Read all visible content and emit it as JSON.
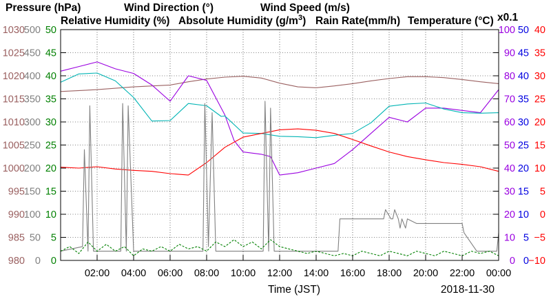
{
  "chart_data": {
    "type": "line",
    "date": "2018-11-30",
    "xlabel": "Time (JST)",
    "x_ticks": [
      "02:00",
      "04:00",
      "06:00",
      "08:00",
      "10:00",
      "12:00",
      "14:00",
      "16:00",
      "18:00",
      "20:00",
      "22:00",
      "00:00"
    ],
    "x_range_hours": [
      0,
      24
    ],
    "grid": true,
    "colors": {
      "pressure": "#9a6060",
      "wind_direction": "#808080",
      "wind_speed": "#008000",
      "relative_humidity": "#9a00e0",
      "absolute_humidity": "#00b4b4",
      "rain_rate": "#0000e0",
      "temperature": "#ff0000"
    },
    "legend": {
      "pressure": "Pressure (hPa)",
      "wind_direction": "Wind Direction (°)",
      "wind_speed": "Wind Speed (m/s)",
      "relative_humidity": "Relative Humidity (%)",
      "absolute_humidity_prefix": "Absolute Humidity (g/m",
      "absolute_humidity_sup": "3",
      "absolute_humidity_suffix": ")",
      "rain_rate": "Rain Rate(mm/h)",
      "temperature": "Temperature (°C)",
      "rain_scale_note": "x0.1"
    },
    "axes": {
      "pressure": {
        "range": [
          980,
          1030
        ],
        "ticks": [
          "1030",
          "1025",
          "1020",
          "1015",
          "1010",
          "1005",
          "1000",
          "995",
          "990",
          "985",
          "980"
        ]
      },
      "wind_direction": {
        "range": [
          0,
          500
        ],
        "ticks": [
          "500",
          "450",
          "400",
          "350",
          "300",
          "250",
          "200",
          "150",
          "100",
          "50",
          "0"
        ]
      },
      "wind_speed": {
        "range": [
          0,
          50
        ],
        "ticks": [
          "50",
          "45",
          "40",
          "35",
          "30",
          "25",
          "20",
          "15",
          "10",
          "5",
          "0"
        ]
      },
      "relative_humidity": {
        "range": [
          0,
          100
        ],
        "ticks": [
          "100",
          "90",
          "80",
          "70",
          "60",
          "50",
          "40",
          "30",
          "20",
          "10",
          "0"
        ]
      },
      "rain_rate": {
        "range": [
          0,
          50
        ],
        "ticks": [
          "50",
          "45",
          "40",
          "35",
          "30",
          "25",
          "20",
          "15",
          "10",
          "5",
          "0"
        ]
      },
      "temperature": {
        "range": [
          -10,
          40
        ],
        "ticks": [
          "40",
          "35",
          "30",
          "25",
          "20",
          "15",
          "10",
          "5",
          "0",
          "−5",
          "−10"
        ]
      }
    },
    "series": [
      {
        "name": "Pressure (hPa)",
        "axis": "pressure",
        "style": "solid",
        "x": [
          0,
          2,
          4,
          6,
          7,
          8,
          9,
          10,
          11,
          12,
          13,
          14,
          15,
          16,
          17,
          18,
          19,
          20,
          21,
          22,
          23,
          24
        ],
        "y": [
          1016.6,
          1017,
          1017.6,
          1018,
          1018.7,
          1019.3,
          1019.7,
          1019.9,
          1019.5,
          1018.4,
          1017.6,
          1017.4,
          1017.8,
          1018.3,
          1018.9,
          1019.4,
          1019.8,
          1019.8,
          1019.6,
          1019.2,
          1018.7,
          1018.3
        ]
      },
      {
        "name": "Relative Humidity (%)",
        "axis": "relative_humidity",
        "style": "solid",
        "x": [
          0,
          1,
          2,
          3,
          4,
          5,
          6,
          7,
          8,
          9,
          9.5,
          10,
          11,
          11.5,
          12,
          13,
          14,
          15,
          16,
          17,
          18,
          19,
          20,
          21,
          22,
          23,
          24
        ],
        "y": [
          82,
          84,
          86,
          83,
          81,
          76,
          69,
          80,
          78,
          63,
          52,
          47,
          46,
          45,
          37,
          38,
          40,
          42,
          48,
          55,
          62,
          60,
          66,
          66,
          65,
          64,
          74
        ]
      },
      {
        "name": "Absolute Humidity (g/m3)",
        "axis": "wind_speed",
        "style": "solid",
        "x": [
          0,
          1,
          2,
          3,
          4,
          5,
          6,
          7,
          8,
          8.8,
          9,
          10,
          11,
          12,
          13,
          14,
          15,
          16,
          17,
          18,
          19,
          20,
          21,
          22,
          23,
          24
        ],
        "y": [
          38.6,
          40.4,
          40.6,
          38.9,
          35.3,
          30.2,
          30.3,
          34,
          33.5,
          31.2,
          31.3,
          27.6,
          27.5,
          26.9,
          26.8,
          26.6,
          27.1,
          27.5,
          29.8,
          33.4,
          33.9,
          34.1,
          32.8,
          32,
          31.9,
          32
        ]
      },
      {
        "name": "Temperature (°C)",
        "axis": "temperature",
        "style": "solid",
        "x": [
          0,
          1,
          2,
          3,
          4,
          5,
          6,
          7,
          8,
          9,
          10,
          11,
          12,
          13,
          14,
          15,
          16,
          17,
          18,
          19,
          20,
          21,
          22,
          23,
          24
        ],
        "y": [
          10.2,
          10,
          10.3,
          9.8,
          9.5,
          9.3,
          8.8,
          8.5,
          11.2,
          14.5,
          16.7,
          17.5,
          18.3,
          18.5,
          18.2,
          17.5,
          16.2,
          14.8,
          13.5,
          12.5,
          11.8,
          11.2,
          10.8,
          10.3,
          9.3
        ]
      },
      {
        "name": "Wind Direction (°)",
        "axis": "wind_direction",
        "style": "solid",
        "x": [
          0,
          1.2,
          1.3,
          1.5,
          1.6,
          1.8,
          2.5,
          3.3,
          3.4,
          3.6,
          3.7,
          4,
          6,
          7.8,
          7.9,
          8.1,
          8.3,
          8.5,
          10,
          11.1,
          11.2,
          11.4,
          11.5,
          11.7,
          15,
          15.2,
          15.3,
          17.7,
          17.8,
          18.1,
          18.2,
          18.3,
          18.5,
          18.6,
          18.7,
          18.9,
          19,
          19.5,
          22,
          22.1,
          22.8,
          23.9,
          24
        ],
        "y": [
          20,
          30,
          240,
          20,
          335,
          20,
          20,
          20,
          340,
          20,
          335,
          20,
          20,
          20,
          340,
          30,
          320,
          20,
          20,
          20,
          345,
          20,
          330,
          20,
          20,
          20,
          90,
          90,
          110,
          90,
          90,
          110,
          90,
          70,
          90,
          70,
          90,
          80,
          80,
          60,
          20,
          20,
          60
        ]
      },
      {
        "name": "Wind Speed (m/s)",
        "axis": "wind_speed",
        "style": "dashed",
        "x": [
          0,
          0.5,
          1,
          1.5,
          2,
          2.5,
          3,
          3.5,
          4,
          4.5,
          5,
          5.5,
          6,
          6.5,
          7,
          7.5,
          8,
          8.5,
          9,
          9.5,
          10,
          10.5,
          11,
          11.5,
          12,
          12.5,
          13,
          13.5,
          14,
          14.5,
          15,
          15.5,
          16,
          16.5,
          17,
          17.5,
          18,
          18.5,
          19,
          19.5,
          20,
          20.5,
          21,
          21.5,
          22,
          22.5,
          23,
          23.5,
          24
        ],
        "y": [
          2,
          3,
          1.5,
          4,
          2,
          3.5,
          2,
          3,
          1,
          2.5,
          2,
          3,
          2,
          3.5,
          2.5,
          3,
          2,
          4,
          3,
          4.5,
          3,
          4,
          2.5,
          4.5,
          3,
          2.5,
          2,
          1.5,
          2,
          1.5,
          1,
          1.5,
          1,
          2,
          1.5,
          1,
          2,
          1.5,
          1,
          2,
          1.5,
          1,
          2,
          1.5,
          1,
          2,
          1.5,
          2,
          1
        ]
      },
      {
        "name": "Rain Rate(mm/h)",
        "axis": "rain_rate",
        "style": "solid",
        "x": [
          0,
          24
        ],
        "y": [
          0,
          0
        ]
      }
    ]
  }
}
